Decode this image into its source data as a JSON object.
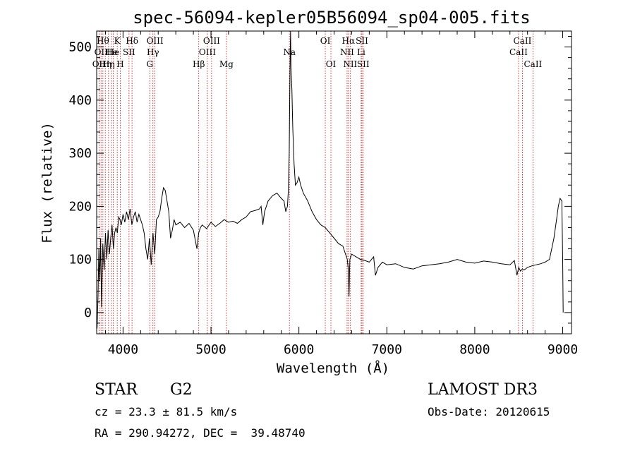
{
  "chart_data": {
    "type": "line",
    "title": "spec-56094-kepler05B56094_sp04-005.fits",
    "xlabel": "Wavelength (Å)",
    "ylabel": "Flux (relative)",
    "xlim": [
      3700,
      9100
    ],
    "ylim": [
      -40,
      530
    ],
    "xticks": [
      {
        "value": 4000,
        "label": "4000"
      },
      {
        "value": 5000,
        "label": "5000"
      },
      {
        "value": 6000,
        "label": "6000"
      },
      {
        "value": 7000,
        "label": "7000"
      },
      {
        "value": 8000,
        "label": "8000"
      },
      {
        "value": 9000,
        "label": "9000"
      }
    ],
    "yticks": [
      {
        "value": 0,
        "label": "0"
      },
      {
        "value": 100,
        "label": "100"
      },
      {
        "value": 200,
        "label": "200"
      },
      {
        "value": 300,
        "label": "300"
      },
      {
        "value": 400,
        "label": "400"
      },
      {
        "value": 500,
        "label": "500"
      }
    ],
    "series": [
      {
        "name": "spectrum",
        "x": [
          3705,
          3715,
          3725,
          3735,
          3745,
          3755,
          3770,
          3785,
          3800,
          3815,
          3830,
          3845,
          3860,
          3875,
          3890,
          3905,
          3920,
          3935,
          3950,
          3965,
          3980,
          4000,
          4020,
          4040,
          4060,
          4080,
          4100,
          4120,
          4140,
          4160,
          4180,
          4200,
          4220,
          4240,
          4260,
          4280,
          4300,
          4320,
          4340,
          4360,
          4380,
          4400,
          4420,
          4440,
          4460,
          4480,
          4500,
          4520,
          4540,
          4560,
          4580,
          4600,
          4650,
          4700,
          4750,
          4800,
          4840,
          4860,
          4880,
          4900,
          4950,
          5000,
          5050,
          5100,
          5150,
          5200,
          5250,
          5300,
          5350,
          5400,
          5450,
          5500,
          5550,
          5570,
          5590,
          5610,
          5650,
          5700,
          5750,
          5800,
          5830,
          5850,
          5870,
          5880,
          5890,
          5895,
          5900,
          5905,
          5910,
          5920,
          5930,
          5945,
          5960,
          5980,
          6000,
          6020,
          6050,
          6100,
          6150,
          6200,
          6250,
          6300,
          6350,
          6400,
          6450,
          6500,
          6530,
          6550,
          6560,
          6565,
          6570,
          6575,
          6580,
          6600,
          6650,
          6700,
          6750,
          6800,
          6850,
          6870,
          6900,
          6950,
          7000,
          7100,
          7200,
          7300,
          7400,
          7500,
          7600,
          7700,
          7800,
          7900,
          8000,
          8100,
          8200,
          8300,
          8400,
          8450,
          8480,
          8500,
          8520,
          8540,
          8560,
          8600,
          8650,
          8700,
          8750,
          8800,
          8850,
          8900,
          8930,
          8950,
          8970,
          8990,
          9000,
          9005
        ],
        "y": [
          -30,
          30,
          120,
          60,
          140,
          10,
          130,
          80,
          150,
          100,
          155,
          110,
          140,
          165,
          120,
          150,
          160,
          150,
          180,
          175,
          165,
          185,
          170,
          190,
          175,
          195,
          165,
          180,
          190,
          170,
          185,
          175,
          165,
          150,
          120,
          100,
          140,
          90,
          150,
          110,
          175,
          180,
          190,
          215,
          235,
          230,
          210,
          190,
          140,
          155,
          175,
          165,
          170,
          160,
          168,
          155,
          120,
          150,
          160,
          165,
          158,
          170,
          162,
          168,
          175,
          170,
          172,
          168,
          175,
          180,
          190,
          192,
          195,
          200,
          165,
          190,
          210,
          220,
          225,
          215,
          210,
          190,
          200,
          230,
          300,
          400,
          480,
          530,
          460,
          420,
          350,
          280,
          240,
          245,
          255,
          240,
          225,
          210,
          190,
          175,
          165,
          160,
          150,
          140,
          130,
          125,
          110,
          100,
          85,
          60,
          30,
          70,
          100,
          110,
          105,
          100,
          98,
          95,
          105,
          70,
          85,
          95,
          90,
          92,
          85,
          82,
          88,
          90,
          92,
          95,
          100,
          95,
          93,
          97,
          95,
          92,
          90,
          98,
          70,
          85,
          78,
          82,
          80,
          85,
          88,
          90,
          92,
          95,
          100,
          140,
          175,
          200,
          215,
          210,
          100,
          0
        ]
      }
    ],
    "lines": [
      {
        "x": 3727,
        "label": "OII",
        "row": 2
      },
      {
        "x": 3750,
        "label": "OII",
        "row": 1
      },
      {
        "x": 3771,
        "label": "Hθ",
        "row": 0
      },
      {
        "x": 3798,
        "label": "Hη",
        "row": 2
      },
      {
        "x": 3835,
        "label": "Hη",
        "row": 2
      },
      {
        "x": 3869,
        "label": "He",
        "row": 1
      },
      {
        "x": 3889,
        "label": "He",
        "row": 1
      },
      {
        "x": 3934,
        "label": "K",
        "row": 0
      },
      {
        "x": 3969,
        "label": "H",
        "row": 2
      },
      {
        "x": 4068,
        "label": "SII",
        "row": 1
      },
      {
        "x": 4102,
        "label": "Hδ",
        "row": 0
      },
      {
        "x": 4304,
        "label": "G",
        "row": 2
      },
      {
        "x": 4340,
        "label": "Hγ",
        "row": 1
      },
      {
        "x": 4363,
        "label": "OIII",
        "row": 0
      },
      {
        "x": 4861,
        "label": "Hβ",
        "row": 2
      },
      {
        "x": 4959,
        "label": "OIII",
        "row": 1
      },
      {
        "x": 5007,
        "label": "OIII",
        "row": 0
      },
      {
        "x": 5175,
        "label": "Mg",
        "row": 2
      },
      {
        "x": 5892,
        "label": "Na",
        "row": 1
      },
      {
        "x": 6300,
        "label": "OI",
        "row": 0
      },
      {
        "x": 6364,
        "label": "OI",
        "row": 2
      },
      {
        "x": 6548,
        "label": "NII",
        "row": 1
      },
      {
        "x": 6563,
        "label": "Hα",
        "row": 0
      },
      {
        "x": 6583,
        "label": "NII",
        "row": 2
      },
      {
        "x": 6708,
        "label": "Li",
        "row": 1
      },
      {
        "x": 6717,
        "label": "SII",
        "row": 0
      },
      {
        "x": 6731,
        "label": "SII",
        "row": 2
      },
      {
        "x": 8498,
        "label": "CaII",
        "row": 1
      },
      {
        "x": 8542,
        "label": "CaII",
        "row": 0
      },
      {
        "x": 8662,
        "label": "CaII",
        "row": 2
      }
    ],
    "colors": {
      "spectrum": "#000000",
      "lines": "#cc0000",
      "axes": "#000000"
    }
  },
  "info": {
    "class": "STAR",
    "subclass": "G2",
    "survey": "LAMOST DR3",
    "cz": "cz = 23.3 ± 81.5 km/s",
    "obs_date": "Obs-Date: 20120615",
    "coords": "RA = 290.94272, DEC =  39.48740"
  }
}
